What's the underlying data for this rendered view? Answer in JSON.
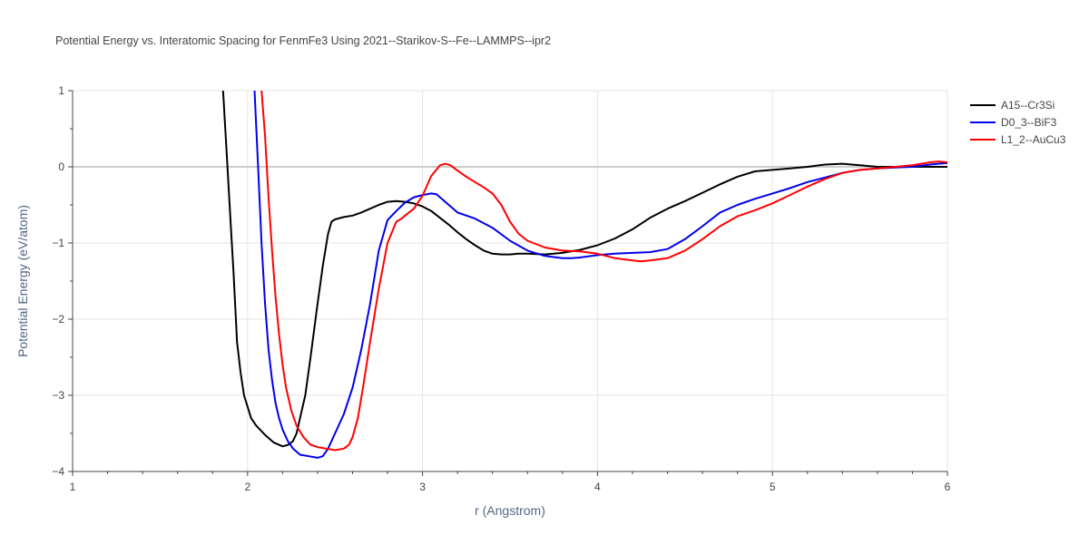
{
  "chart_data": {
    "type": "line",
    "title": "Potential Energy vs. Interatomic Spacing for FenmFe3 Using 2021--Starikov-S--Fe--LAMMPS--ipr2",
    "xlabel": "r (Angstrom)",
    "ylabel": "Potential Energy (eV/atom)",
    "xlim": [
      1,
      6
    ],
    "ylim": [
      -4,
      1
    ],
    "xticks": [
      1,
      2,
      3,
      4,
      5,
      6
    ],
    "yticks": [
      1,
      0,
      -1,
      -2,
      -3,
      -4
    ],
    "ytick_labels": [
      "1",
      "0",
      "−1",
      "−2",
      "−3",
      "−4"
    ],
    "grid": true,
    "legend_position": "top-right",
    "series": [
      {
        "name": "A15--Cr3Si",
        "color": "#000000",
        "x": [
          1.86,
          1.88,
          1.9,
          1.92,
          1.94,
          1.96,
          1.98,
          2.0,
          2.02,
          2.05,
          2.1,
          2.15,
          2.18,
          2.2,
          2.22,
          2.24,
          2.26,
          2.28,
          2.3,
          2.33,
          2.36,
          2.4,
          2.43,
          2.46,
          2.48,
          2.5,
          2.55,
          2.6,
          2.65,
          2.7,
          2.75,
          2.8,
          2.85,
          2.9,
          2.95,
          3.0,
          3.05,
          3.1,
          3.15,
          3.2,
          3.25,
          3.3,
          3.35,
          3.4,
          3.45,
          3.5,
          3.55,
          3.6,
          3.7,
          3.8,
          3.9,
          4.0,
          4.1,
          4.2,
          4.3,
          4.4,
          4.5,
          4.6,
          4.7,
          4.8,
          4.9,
          5.0,
          5.1,
          5.2,
          5.3,
          5.4,
          5.5,
          5.6,
          5.7,
          5.8,
          5.9,
          6.0
        ],
        "y": [
          1.0,
          0.2,
          -0.6,
          -1.4,
          -2.3,
          -2.7,
          -3.0,
          -3.15,
          -3.3,
          -3.4,
          -3.52,
          -3.62,
          -3.65,
          -3.67,
          -3.66,
          -3.64,
          -3.6,
          -3.5,
          -3.3,
          -3.0,
          -2.5,
          -1.8,
          -1.3,
          -0.88,
          -0.72,
          -0.69,
          -0.66,
          -0.64,
          -0.6,
          -0.55,
          -0.5,
          -0.46,
          -0.45,
          -0.46,
          -0.48,
          -0.52,
          -0.58,
          -0.67,
          -0.76,
          -0.86,
          -0.95,
          -1.03,
          -1.1,
          -1.14,
          -1.15,
          -1.15,
          -1.14,
          -1.14,
          -1.15,
          -1.13,
          -1.09,
          -1.03,
          -0.94,
          -0.82,
          -0.67,
          -0.55,
          -0.45,
          -0.34,
          -0.23,
          -0.13,
          -0.06,
          -0.04,
          -0.02,
          0.0,
          0.03,
          0.04,
          0.02,
          0.0,
          0.0,
          0.0,
          0.0,
          0.0
        ]
      },
      {
        "name": "D0_3--BiF3",
        "color": "#0000ee",
        "x": [
          2.04,
          2.06,
          2.08,
          2.1,
          2.12,
          2.14,
          2.16,
          2.18,
          2.2,
          2.23,
          2.26,
          2.3,
          2.35,
          2.4,
          2.43,
          2.46,
          2.5,
          2.55,
          2.6,
          2.65,
          2.7,
          2.75,
          2.8,
          2.85,
          2.9,
          2.95,
          3.0,
          3.05,
          3.08,
          3.1,
          3.15,
          3.2,
          3.3,
          3.4,
          3.5,
          3.6,
          3.7,
          3.8,
          3.85,
          3.9,
          4.0,
          4.1,
          4.2,
          4.3,
          4.4,
          4.5,
          4.6,
          4.7,
          4.8,
          4.9,
          5.0,
          5.1,
          5.2,
          5.3,
          5.4,
          5.5,
          5.6,
          5.7,
          5.8,
          5.9,
          6.0
        ],
        "y": [
          1.0,
          0.0,
          -1.0,
          -1.8,
          -2.4,
          -2.8,
          -3.1,
          -3.3,
          -3.45,
          -3.6,
          -3.7,
          -3.78,
          -3.8,
          -3.82,
          -3.8,
          -3.7,
          -3.5,
          -3.25,
          -2.9,
          -2.4,
          -1.8,
          -1.1,
          -0.7,
          -0.58,
          -0.47,
          -0.4,
          -0.37,
          -0.35,
          -0.36,
          -0.4,
          -0.5,
          -0.6,
          -0.68,
          -0.8,
          -0.97,
          -1.1,
          -1.17,
          -1.2,
          -1.2,
          -1.19,
          -1.16,
          -1.14,
          -1.13,
          -1.12,
          -1.08,
          -0.95,
          -0.78,
          -0.6,
          -0.5,
          -0.42,
          -0.35,
          -0.28,
          -0.2,
          -0.14,
          -0.08,
          -0.04,
          -0.02,
          -0.01,
          0.0,
          0.03,
          0.05
        ]
      },
      {
        "name": "L1_2--AuCu3",
        "color": "#ff0000",
        "x": [
          2.08,
          2.1,
          2.12,
          2.14,
          2.16,
          2.18,
          2.2,
          2.22,
          2.25,
          2.28,
          2.32,
          2.36,
          2.4,
          2.45,
          2.5,
          2.55,
          2.58,
          2.6,
          2.63,
          2.66,
          2.7,
          2.75,
          2.8,
          2.85,
          2.88,
          2.9,
          2.95,
          3.0,
          3.05,
          3.1,
          3.13,
          3.16,
          3.2,
          3.25,
          3.3,
          3.35,
          3.4,
          3.45,
          3.5,
          3.55,
          3.6,
          3.7,
          3.8,
          3.9,
          4.0,
          4.1,
          4.2,
          4.25,
          4.3,
          4.4,
          4.5,
          4.6,
          4.7,
          4.8,
          4.9,
          5.0,
          5.1,
          5.2,
          5.3,
          5.4,
          5.5,
          5.6,
          5.7,
          5.8,
          5.9,
          5.95,
          6.0
        ],
        "y": [
          1.0,
          0.4,
          -0.4,
          -1.1,
          -1.7,
          -2.2,
          -2.6,
          -2.9,
          -3.2,
          -3.4,
          -3.55,
          -3.65,
          -3.68,
          -3.7,
          -3.72,
          -3.7,
          -3.65,
          -3.55,
          -3.3,
          -2.9,
          -2.3,
          -1.6,
          -1.0,
          -0.72,
          -0.68,
          -0.64,
          -0.55,
          -0.38,
          -0.12,
          0.02,
          0.04,
          0.02,
          -0.05,
          -0.13,
          -0.2,
          -0.27,
          -0.35,
          -0.5,
          -0.72,
          -0.88,
          -0.97,
          -1.06,
          -1.1,
          -1.11,
          -1.14,
          -1.2,
          -1.23,
          -1.24,
          -1.23,
          -1.2,
          -1.1,
          -0.95,
          -0.78,
          -0.65,
          -0.57,
          -0.48,
          -0.37,
          -0.26,
          -0.16,
          -0.08,
          -0.04,
          -0.02,
          0.0,
          0.02,
          0.06,
          0.07,
          0.06
        ]
      }
    ]
  }
}
